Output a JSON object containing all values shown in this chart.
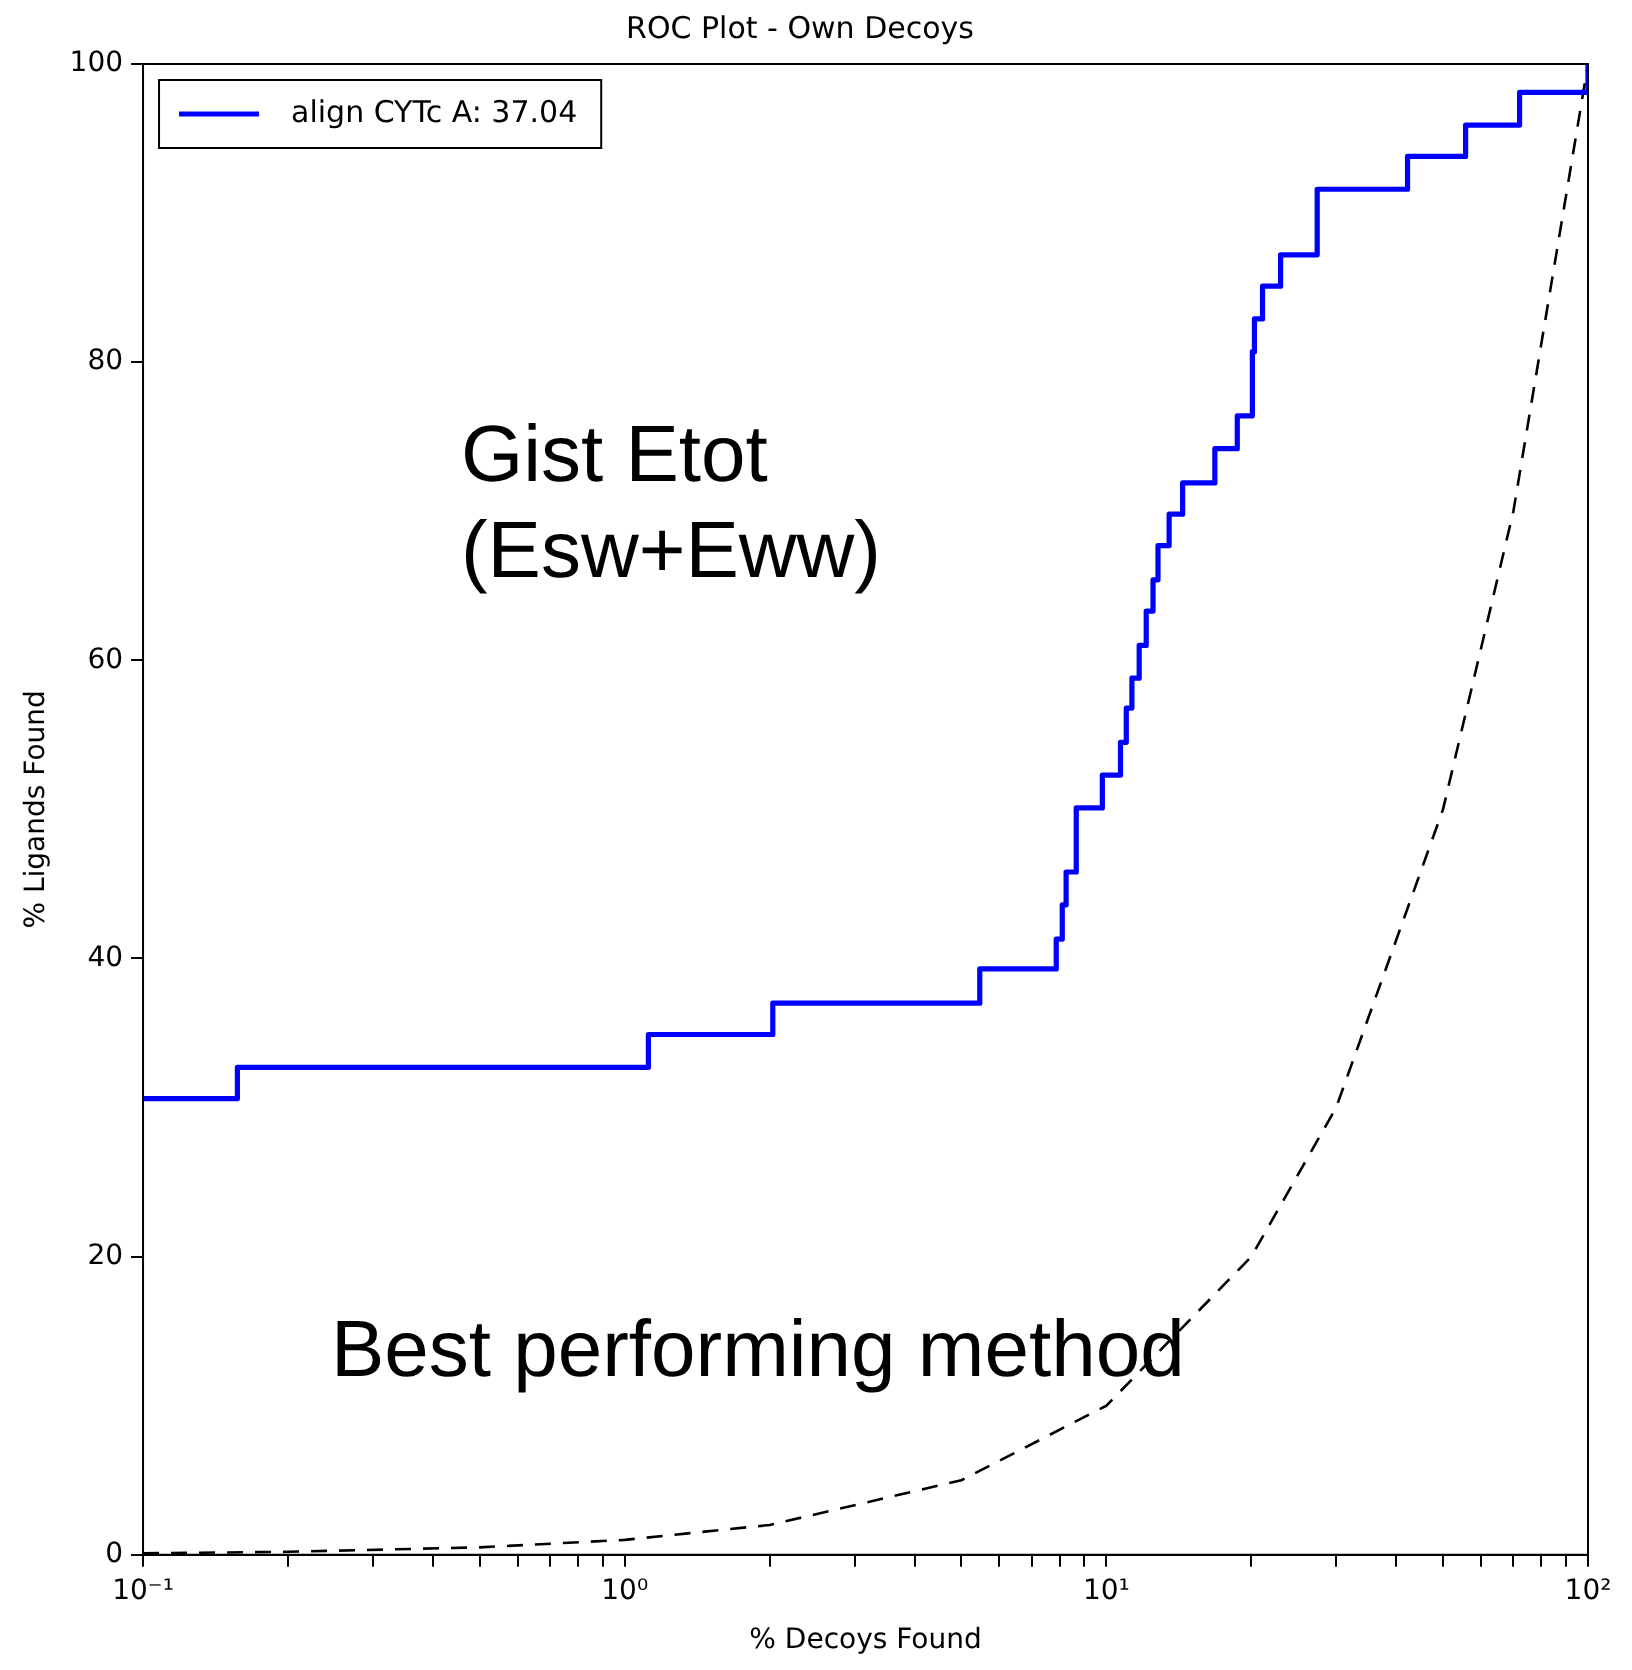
{
  "chart_data": {
    "type": "line",
    "title": "ROC Plot - Own Decoys",
    "xlabel": "% Decoys Found",
    "ylabel": "% Ligands Found",
    "log": "x",
    "xlim": [
      0.1,
      100
    ],
    "ylim": [
      0,
      100
    ],
    "xticks": [
      {
        "value": 0.1,
        "label": "10⁻¹"
      },
      {
        "value": 0.2,
        "label": null
      },
      {
        "value": 0.3,
        "label": null
      },
      {
        "value": 0.4,
        "label": null
      },
      {
        "value": 0.5,
        "label": null
      },
      {
        "value": 0.6,
        "label": null
      },
      {
        "value": 0.7,
        "label": null
      },
      {
        "value": 0.8,
        "label": null
      },
      {
        "value": 0.9,
        "label": null
      },
      {
        "value": 1,
        "label": "10⁰"
      },
      {
        "value": 2,
        "label": null
      },
      {
        "value": 3,
        "label": null
      },
      {
        "value": 4,
        "label": null
      },
      {
        "value": 5,
        "label": null
      },
      {
        "value": 6,
        "label": null
      },
      {
        "value": 7,
        "label": null
      },
      {
        "value": 8,
        "label": null
      },
      {
        "value": 9,
        "label": null
      },
      {
        "value": 10,
        "label": "10¹"
      },
      {
        "value": 20,
        "label": null
      },
      {
        "value": 30,
        "label": null
      },
      {
        "value": 40,
        "label": null
      },
      {
        "value": 50,
        "label": null
      },
      {
        "value": 60,
        "label": null
      },
      {
        "value": 70,
        "label": null
      },
      {
        "value": 80,
        "label": null
      },
      {
        "value": 90,
        "label": null
      },
      {
        "value": 100,
        "label": "10²"
      }
    ],
    "yticks": [
      0,
      20,
      40,
      60,
      80,
      100
    ],
    "grid": false,
    "legend": "top left",
    "series": [
      {
        "name": "align CYTc A: 37.04",
        "type": "step",
        "color": "#0000ff",
        "line_style": "solid",
        "x": [
          0.1,
          0.157,
          1.12,
          2.03,
          5.46,
          7.87,
          8.1,
          8.25,
          8.66,
          9.81,
          10.7,
          11.0,
          11.3,
          11.7,
          12.1,
          12.5,
          12.8,
          13.5,
          14.4,
          16.8,
          18.7,
          20.1,
          20.3,
          21.1,
          23.0,
          27.4,
          42.2,
          55.7,
          72.1,
          76.4,
          100
        ],
        "values": [
          30.6,
          32.7,
          34.9,
          37.0,
          39.3,
          41.3,
          43.6,
          45.8,
          50.1,
          52.3,
          54.5,
          56.8,
          58.8,
          61.0,
          63.3,
          65.4,
          67.7,
          69.8,
          71.9,
          74.2,
          76.4,
          80.7,
          82.9,
          85.1,
          87.2,
          91.6,
          93.8,
          95.9,
          98.1,
          98.1,
          100
        ]
      },
      {
        "type": "line",
        "color": "#000000",
        "line_style": "dashed",
        "x": [
          0.1,
          0.2,
          0.5,
          1,
          2,
          5,
          10,
          20,
          30,
          50,
          70,
          100
        ],
        "values": [
          0.1,
          0.2,
          0.5,
          1,
          2,
          5,
          10,
          20,
          30,
          50,
          70,
          100
        ]
      }
    ],
    "annotations": [
      "Gist Etot\n(Esw+Eww)",
      "Best performing method"
    ]
  }
}
